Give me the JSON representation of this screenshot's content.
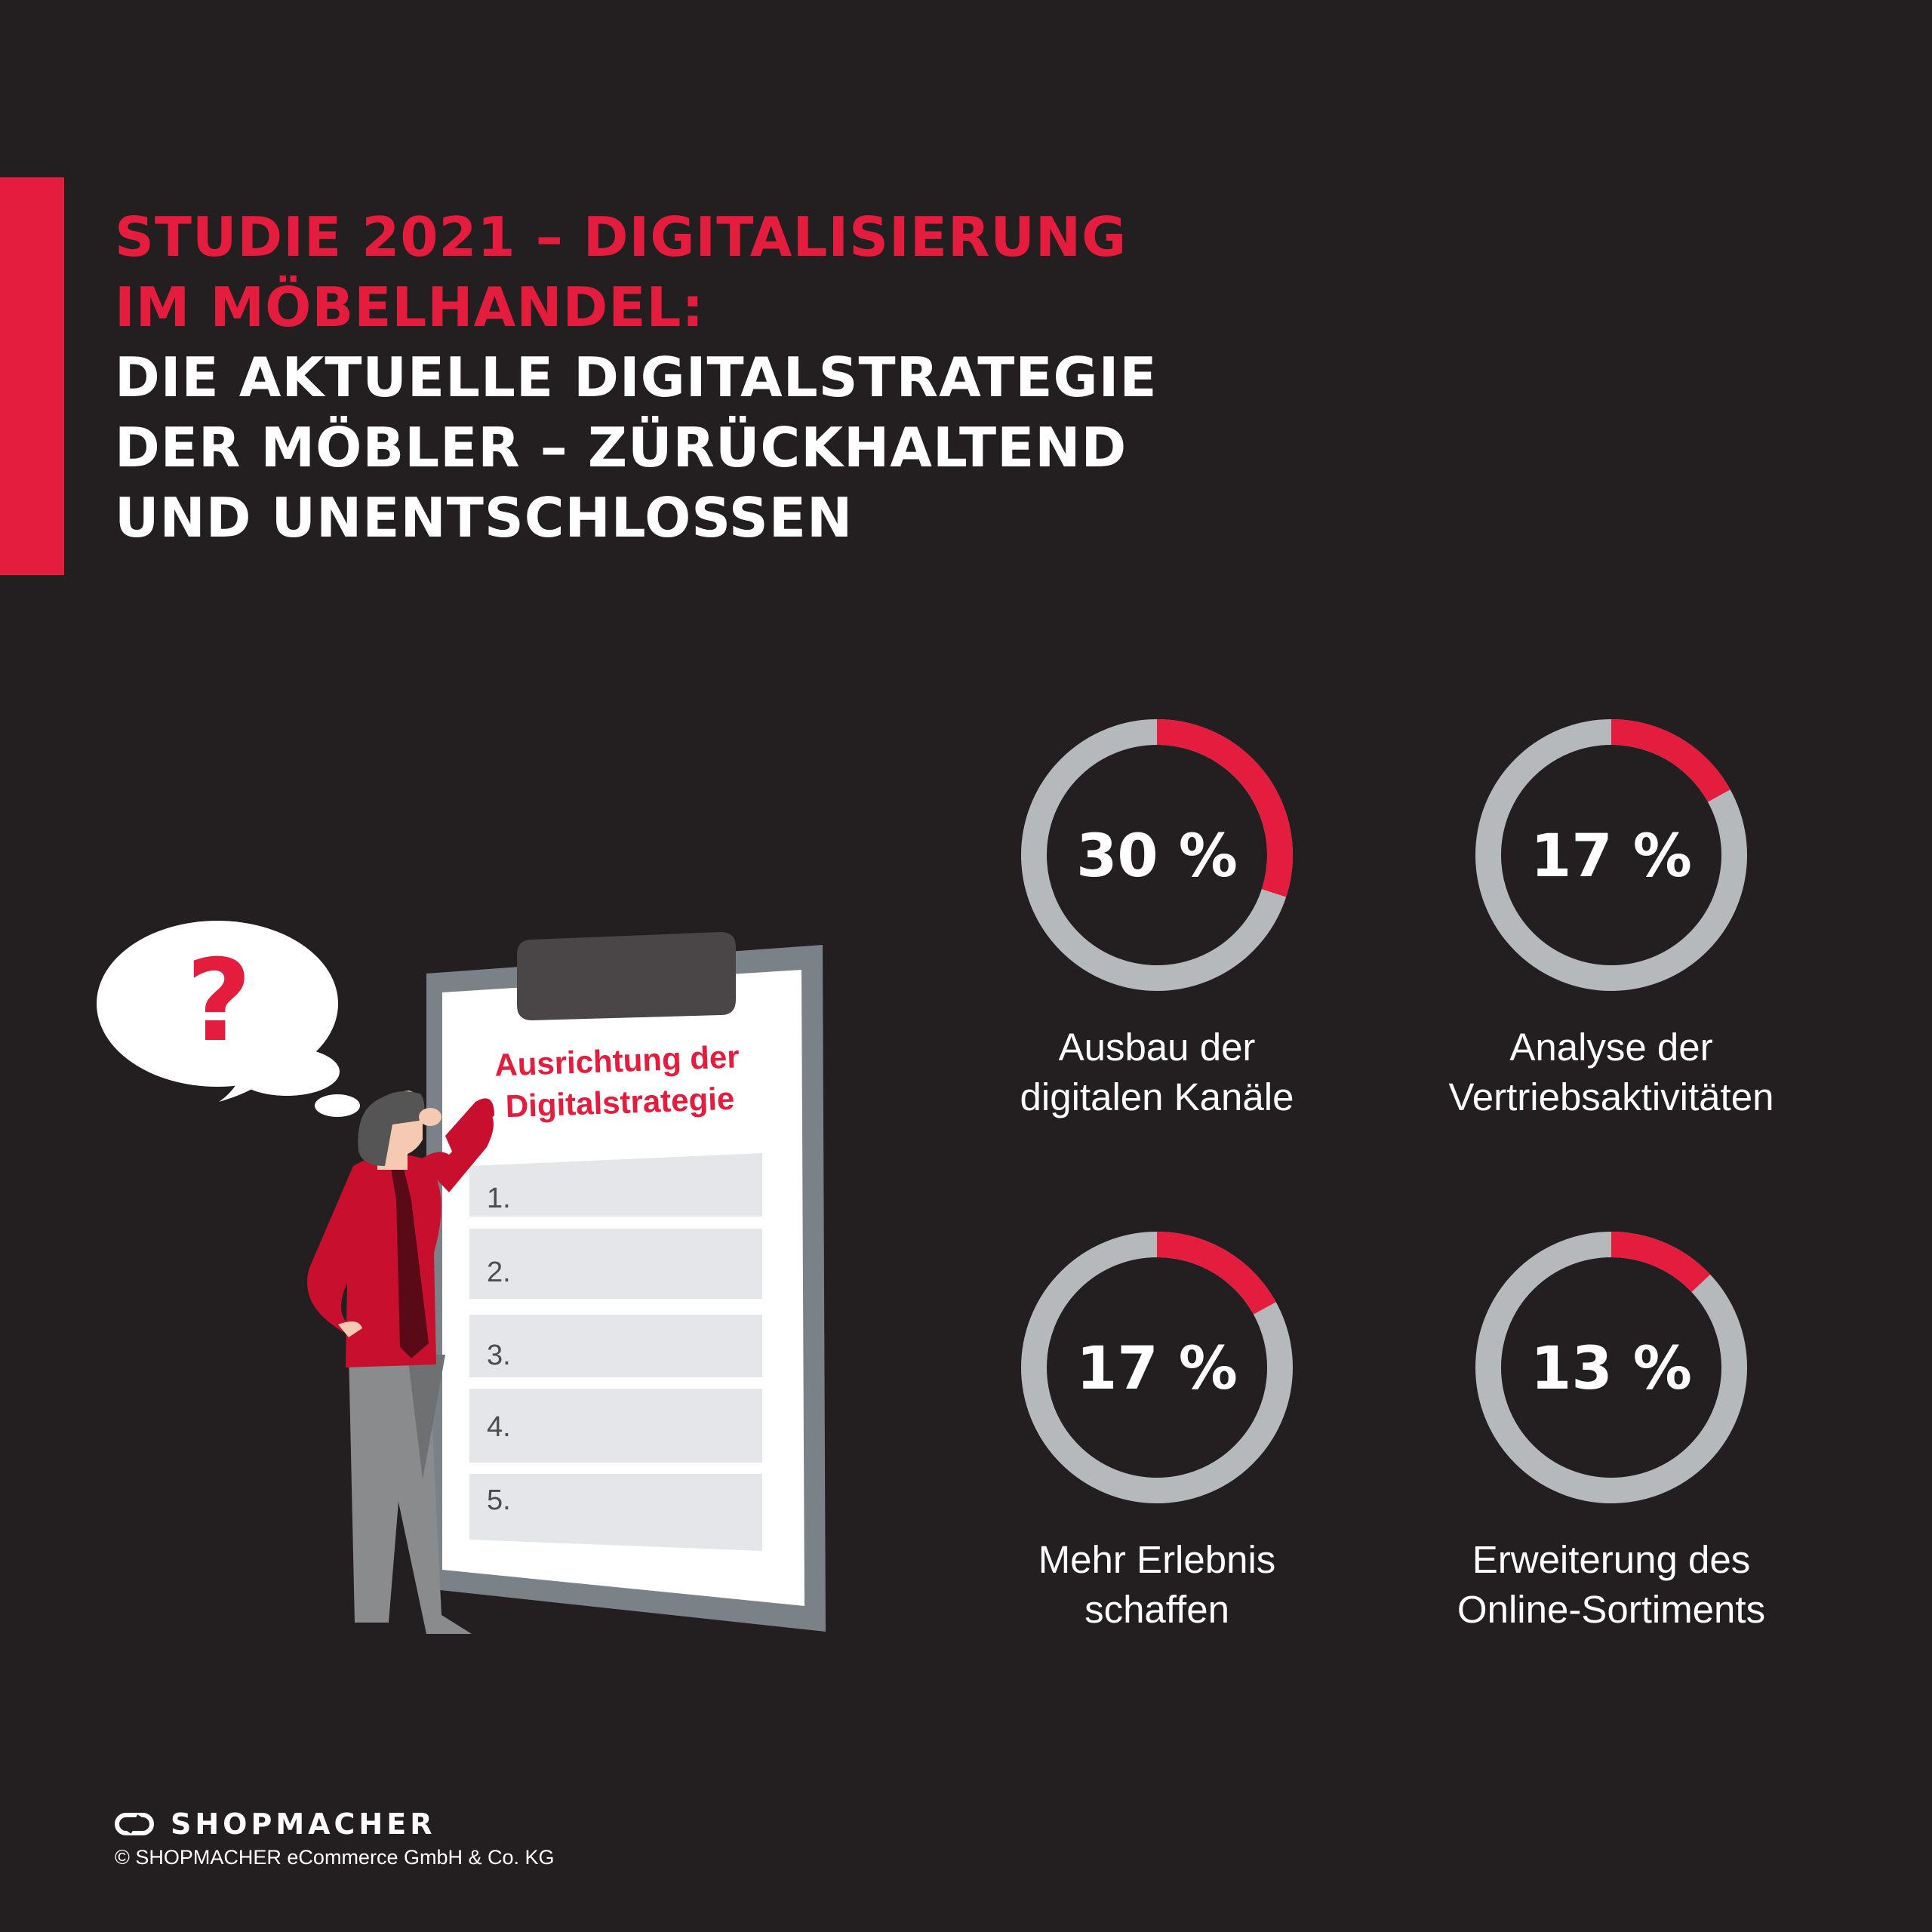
{
  "title": {
    "red_lines": [
      "STUDIE 2021 – DIGITALISIERUNG",
      "IM MÖBELHANDEL:"
    ],
    "white_lines": [
      "DIE AKTUELLE DIGITALSTRATEGIE",
      "DER MÖBLER – ZÜRÜCKHALTEND",
      "UND UNENTSCHLOSSEN"
    ]
  },
  "colors": {
    "background": "#231f20",
    "accent": "#e41c3d",
    "ring_track": "#b6b9bc",
    "text": "#ffffff"
  },
  "illustration": {
    "thought_symbol": "?",
    "clipboard_title": [
      "Ausrichtung der",
      "Digitalstrategie"
    ],
    "list_numbers": [
      "1.",
      "2.",
      "3.",
      "4.",
      "5."
    ],
    "icons": [
      "thought-bubble-icon",
      "clipboard-icon",
      "confused-person-icon"
    ]
  },
  "chart_data": {
    "type": "donut",
    "items": [
      {
        "value": 30,
        "value_label": "30 %",
        "label_lines": [
          "Ausbau der",
          "digitalen Kanäle"
        ]
      },
      {
        "value": 17,
        "value_label": "17 %",
        "label_lines": [
          "Analyse der",
          "Vertriebsaktivitäten"
        ]
      },
      {
        "value": 17,
        "value_label": "17 %",
        "label_lines": [
          "Mehr Erlebnis",
          "schaffen"
        ]
      },
      {
        "value": 13,
        "value_label": "13 %",
        "label_lines": [
          "Erweiterung des",
          "Online-Sortiments"
        ]
      }
    ]
  },
  "footer": {
    "brand": "SHOPMACHER",
    "logo_icon": "shopmacher-link-icon",
    "copyright": "© SHOPMACHER eCommerce GmbH & Co. KG"
  }
}
